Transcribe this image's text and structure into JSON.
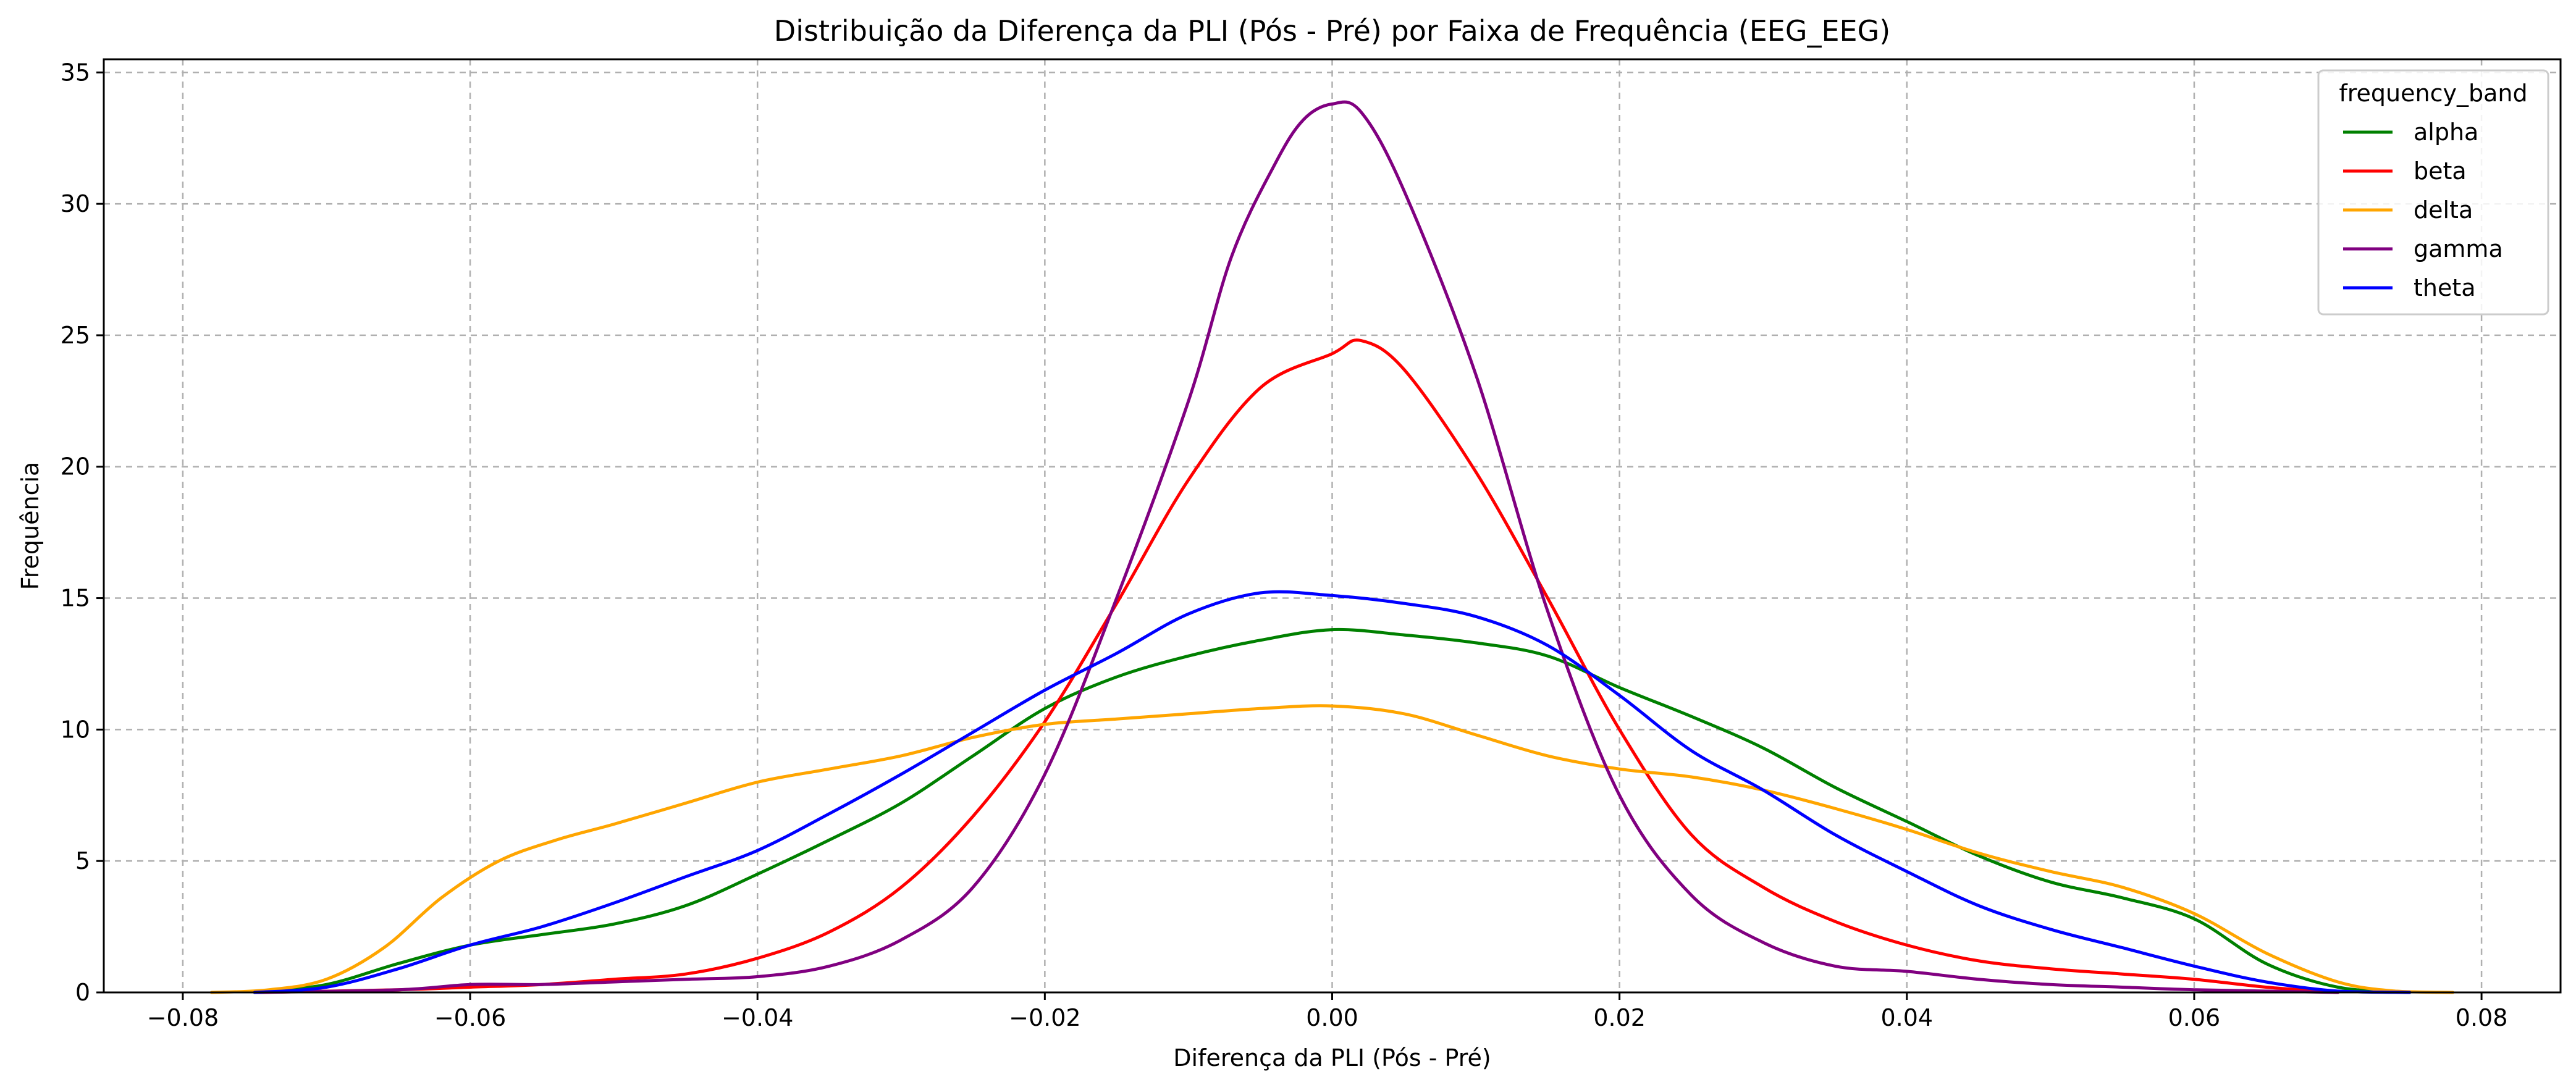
{
  "chart_data": {
    "type": "line",
    "title": "Distribuição da Diferença da PLI (Pós - Pré) por Faixa de Frequência (EEG_EEG)",
    "xlabel": "Diferença da PLI (Pós - Pré)",
    "ylabel": "Frequência",
    "xlim": [
      -0.0855,
      0.0855
    ],
    "ylim": [
      0,
      35.5
    ],
    "xticks": [
      -0.08,
      -0.06,
      -0.04,
      -0.02,
      0.0,
      0.02,
      0.04,
      0.06,
      0.08
    ],
    "xtick_labels": [
      "−0.08",
      "−0.06",
      "−0.04",
      "−0.02",
      "0.00",
      "0.02",
      "0.04",
      "0.06",
      "0.08"
    ],
    "yticks": [
      0,
      5,
      10,
      15,
      20,
      25,
      30,
      35
    ],
    "ytick_labels": [
      "0",
      "5",
      "10",
      "15",
      "20",
      "25",
      "30",
      "35"
    ],
    "grid": true,
    "legend": {
      "title": "frequency_band",
      "placement": "top-right"
    },
    "series": [
      {
        "name": "alpha",
        "color": "#008000",
        "points": [
          [
            -0.075,
            0
          ],
          [
            -0.07,
            0.3
          ],
          [
            -0.065,
            1.1
          ],
          [
            -0.06,
            1.8
          ],
          [
            -0.055,
            2.2
          ],
          [
            -0.05,
            2.6
          ],
          [
            -0.045,
            3.3
          ],
          [
            -0.04,
            4.5
          ],
          [
            -0.035,
            5.8
          ],
          [
            -0.03,
            7.2
          ],
          [
            -0.025,
            9.0
          ],
          [
            -0.02,
            10.8
          ],
          [
            -0.015,
            12.0
          ],
          [
            -0.01,
            12.8
          ],
          [
            -0.005,
            13.4
          ],
          [
            0.0,
            13.8
          ],
          [
            0.005,
            13.6
          ],
          [
            0.01,
            13.3
          ],
          [
            0.015,
            12.8
          ],
          [
            0.02,
            11.6
          ],
          [
            0.025,
            10.5
          ],
          [
            0.03,
            9.3
          ],
          [
            0.035,
            7.8
          ],
          [
            0.04,
            6.5
          ],
          [
            0.045,
            5.2
          ],
          [
            0.05,
            4.2
          ],
          [
            0.055,
            3.6
          ],
          [
            0.06,
            2.8
          ],
          [
            0.065,
            1.1
          ],
          [
            0.07,
            0.2
          ],
          [
            0.075,
            0
          ]
        ]
      },
      {
        "name": "beta",
        "color": "#ff0000",
        "points": [
          [
            -0.075,
            0
          ],
          [
            -0.065,
            0.1
          ],
          [
            -0.06,
            0.2
          ],
          [
            -0.055,
            0.3
          ],
          [
            -0.05,
            0.5
          ],
          [
            -0.045,
            0.7
          ],
          [
            -0.04,
            1.3
          ],
          [
            -0.035,
            2.3
          ],
          [
            -0.03,
            4.0
          ],
          [
            -0.025,
            6.7
          ],
          [
            -0.02,
            10.3
          ],
          [
            -0.015,
            14.8
          ],
          [
            -0.01,
            19.5
          ],
          [
            -0.005,
            23.0
          ],
          [
            0.0,
            24.3
          ],
          [
            0.002,
            24.8
          ],
          [
            0.005,
            23.7
          ],
          [
            0.01,
            19.8
          ],
          [
            0.015,
            15.0
          ],
          [
            0.02,
            10.0
          ],
          [
            0.025,
            6.0
          ],
          [
            0.03,
            4.0
          ],
          [
            0.035,
            2.7
          ],
          [
            0.04,
            1.8
          ],
          [
            0.045,
            1.2
          ],
          [
            0.05,
            0.9
          ],
          [
            0.055,
            0.7
          ],
          [
            0.06,
            0.5
          ],
          [
            0.065,
            0.2
          ],
          [
            0.07,
            0
          ]
        ]
      },
      {
        "name": "delta",
        "color": "#ffa500",
        "points": [
          [
            -0.078,
            0
          ],
          [
            -0.074,
            0.1
          ],
          [
            -0.07,
            0.5
          ],
          [
            -0.066,
            1.7
          ],
          [
            -0.062,
            3.6
          ],
          [
            -0.058,
            5.0
          ],
          [
            -0.054,
            5.8
          ],
          [
            -0.05,
            6.4
          ],
          [
            -0.045,
            7.2
          ],
          [
            -0.04,
            8.0
          ],
          [
            -0.035,
            8.5
          ],
          [
            -0.03,
            9.0
          ],
          [
            -0.025,
            9.7
          ],
          [
            -0.02,
            10.2
          ],
          [
            -0.015,
            10.4
          ],
          [
            -0.01,
            10.6
          ],
          [
            -0.005,
            10.8
          ],
          [
            0.0,
            10.9
          ],
          [
            0.005,
            10.6
          ],
          [
            0.01,
            9.8
          ],
          [
            0.015,
            9.0
          ],
          [
            0.02,
            8.5
          ],
          [
            0.025,
            8.2
          ],
          [
            0.03,
            7.7
          ],
          [
            0.035,
            7.0
          ],
          [
            0.04,
            6.2
          ],
          [
            0.045,
            5.3
          ],
          [
            0.05,
            4.6
          ],
          [
            0.055,
            4.0
          ],
          [
            0.06,
            3.0
          ],
          [
            0.065,
            1.5
          ],
          [
            0.07,
            0.4
          ],
          [
            0.074,
            0.05
          ],
          [
            0.078,
            0
          ]
        ]
      },
      {
        "name": "gamma",
        "color": "#800080",
        "points": [
          [
            -0.075,
            0
          ],
          [
            -0.065,
            0.1
          ],
          [
            -0.06,
            0.3
          ],
          [
            -0.055,
            0.3
          ],
          [
            -0.05,
            0.4
          ],
          [
            -0.045,
            0.5
          ],
          [
            -0.04,
            0.6
          ],
          [
            -0.035,
            1.0
          ],
          [
            -0.03,
            2.0
          ],
          [
            -0.025,
            4.0
          ],
          [
            -0.02,
            8.3
          ],
          [
            -0.015,
            15.0
          ],
          [
            -0.01,
            22.5
          ],
          [
            -0.007,
            28.0
          ],
          [
            -0.004,
            31.5
          ],
          [
            -0.002,
            33.2
          ],
          [
            0.0,
            33.8
          ],
          [
            0.002,
            33.5
          ],
          [
            0.005,
            30.5
          ],
          [
            0.01,
            23.5
          ],
          [
            0.015,
            14.5
          ],
          [
            0.02,
            7.5
          ],
          [
            0.025,
            3.7
          ],
          [
            0.03,
            1.9
          ],
          [
            0.035,
            1.0
          ],
          [
            0.04,
            0.8
          ],
          [
            0.045,
            0.5
          ],
          [
            0.05,
            0.3
          ],
          [
            0.055,
            0.2
          ],
          [
            0.06,
            0.1
          ],
          [
            0.065,
            0.05
          ],
          [
            0.07,
            0
          ]
        ]
      },
      {
        "name": "theta",
        "color": "#0000ff",
        "points": [
          [
            -0.075,
            0
          ],
          [
            -0.07,
            0.2
          ],
          [
            -0.065,
            0.9
          ],
          [
            -0.06,
            1.8
          ],
          [
            -0.055,
            2.5
          ],
          [
            -0.05,
            3.4
          ],
          [
            -0.045,
            4.4
          ],
          [
            -0.04,
            5.4
          ],
          [
            -0.035,
            6.8
          ],
          [
            -0.03,
            8.3
          ],
          [
            -0.025,
            9.9
          ],
          [
            -0.02,
            11.5
          ],
          [
            -0.015,
            12.9
          ],
          [
            -0.01,
            14.4
          ],
          [
            -0.005,
            15.2
          ],
          [
            0.0,
            15.1
          ],
          [
            0.005,
            14.8
          ],
          [
            0.01,
            14.3
          ],
          [
            0.015,
            13.2
          ],
          [
            0.02,
            11.3
          ],
          [
            0.025,
            9.2
          ],
          [
            0.03,
            7.7
          ],
          [
            0.035,
            6.0
          ],
          [
            0.04,
            4.6
          ],
          [
            0.045,
            3.3
          ],
          [
            0.05,
            2.4
          ],
          [
            0.055,
            1.7
          ],
          [
            0.06,
            1.0
          ],
          [
            0.065,
            0.4
          ],
          [
            0.07,
            0.05
          ],
          [
            0.075,
            0
          ]
        ]
      }
    ]
  }
}
